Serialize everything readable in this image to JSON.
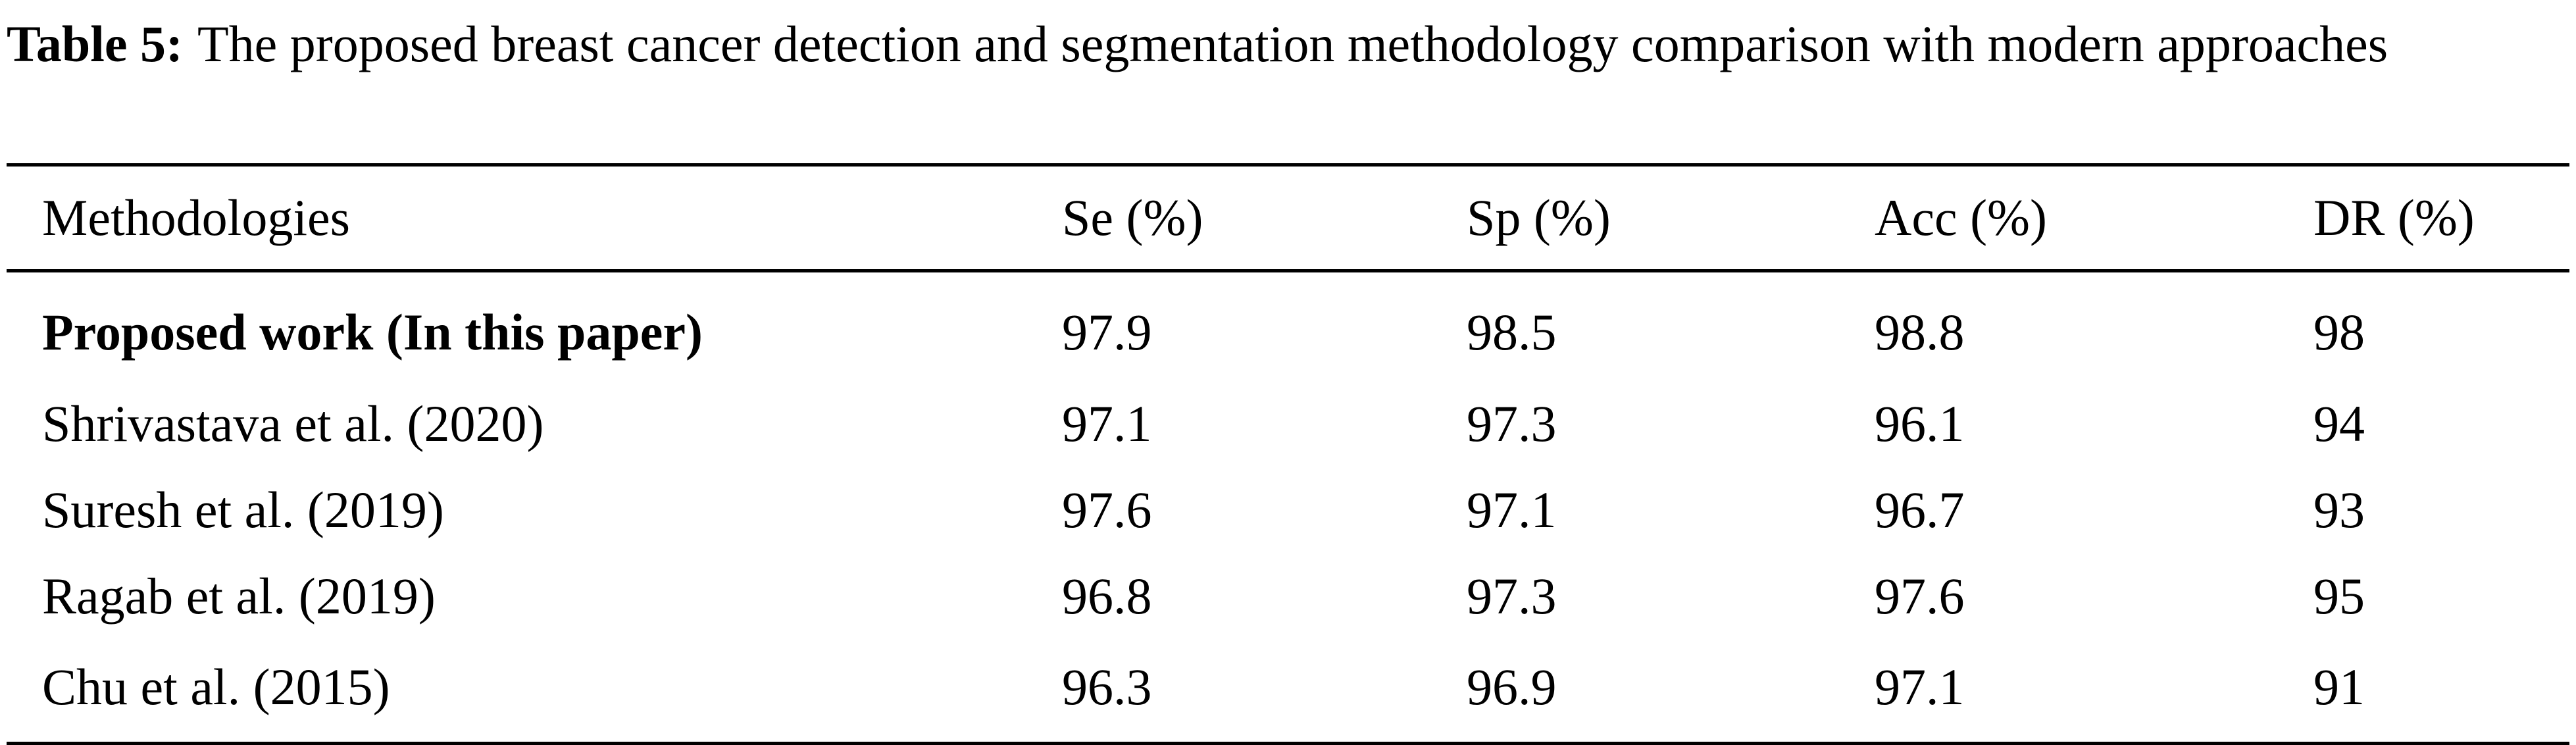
{
  "caption": {
    "label": "Table 5:",
    "text": "The proposed breast cancer detection and segmentation methodology comparison with modern approaches"
  },
  "table": {
    "headers": [
      "Methodologies",
      "Se (%)",
      "Sp (%)",
      "Acc (%)",
      "DR (%)"
    ],
    "rows": [
      [
        "Proposed work (In this paper)",
        "97.9",
        "98.5",
        "98.8",
        "98"
      ],
      [
        "Shrivastava et al. (2020)",
        "97.1",
        "97.3",
        "96.1",
        "94"
      ],
      [
        "Suresh et al. (2019)",
        "97.6",
        "97.1",
        "96.7",
        "93"
      ],
      [
        "Ragab et al. (2019)",
        "96.8",
        "97.3",
        "97.6",
        "95"
      ],
      [
        "Chu et al. (2015)",
        "96.3",
        "96.9",
        "97.1",
        "91"
      ]
    ]
  }
}
